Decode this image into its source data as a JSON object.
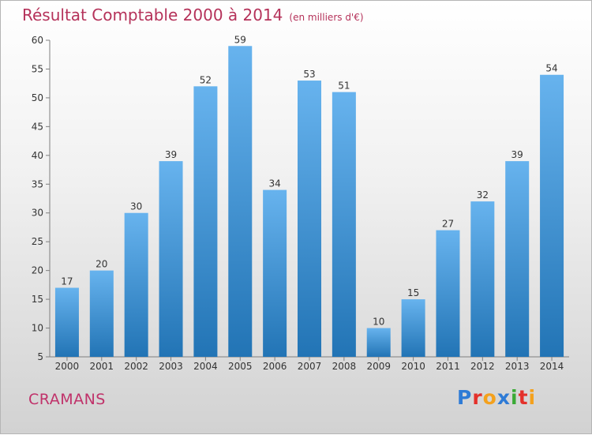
{
  "title": "Résultat Comptable 2000 à 2014",
  "unit": "(en milliers d'€)",
  "footer_name": "CRAMANS",
  "logo": {
    "letters": [
      "P",
      "r",
      "o",
      "x",
      "i",
      "t",
      "i"
    ],
    "colors": [
      "#2e7bd6",
      "#e4312b",
      "#f4a11d",
      "#2e7bd6",
      "#3aaa35",
      "#e4312b",
      "#f4a11d"
    ]
  },
  "colors": {
    "bar_top": "#67b3ee",
    "bar_bottom": "#2274b5",
    "title": "#b5325a"
  },
  "chart_data": {
    "type": "bar",
    "title": "Résultat Comptable 2000 à 2014",
    "xlabel": "",
    "ylabel": "(en milliers d'€)",
    "categories": [
      "2000",
      "2001",
      "2002",
      "2003",
      "2004",
      "2005",
      "2006",
      "2007",
      "2008",
      "2009",
      "2010",
      "2011",
      "2012",
      "2013",
      "2014"
    ],
    "values": [
      17,
      20,
      30,
      39,
      52,
      59,
      34,
      53,
      51,
      10,
      15,
      27,
      32,
      39,
      54
    ],
    "ylim": [
      5,
      60
    ],
    "yticks": [
      5,
      10,
      15,
      20,
      25,
      30,
      35,
      40,
      45,
      50,
      55,
      60
    ],
    "grid": false
  }
}
